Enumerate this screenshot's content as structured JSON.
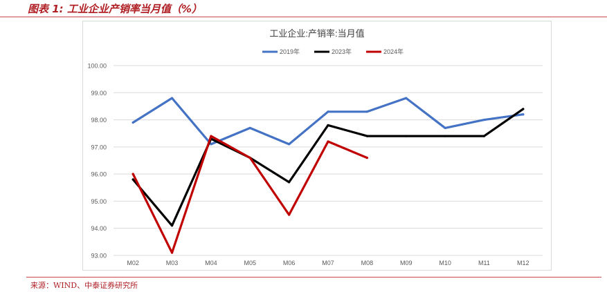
{
  "figure_caption": "图表 1:  工业企业产销率当月值（%）",
  "source_note": "来源：WIND、中泰证券研究所",
  "chart_data": {
    "type": "line",
    "title": "工业企业:产销率:当月值",
    "categories": [
      "M02",
      "M03",
      "M04",
      "M05",
      "M06",
      "M07",
      "M08",
      "M09",
      "M10",
      "M11",
      "M12"
    ],
    "ylim": [
      93.0,
      100.0
    ],
    "yticks": [
      "93.00",
      "94.00",
      "95.00",
      "96.00",
      "97.00",
      "98.00",
      "99.00",
      "100.00"
    ],
    "grid": true,
    "legend_position": "top-center",
    "series": [
      {
        "name": "2019年",
        "color": "#4472c4",
        "values": [
          97.9,
          98.8,
          97.1,
          97.7,
          97.1,
          98.3,
          98.3,
          98.8,
          97.7,
          98.0,
          98.2
        ]
      },
      {
        "name": "2023年",
        "color": "#000000",
        "values": [
          95.8,
          94.1,
          97.3,
          96.6,
          95.7,
          97.8,
          97.4,
          97.4,
          97.4,
          97.4,
          98.4
        ]
      },
      {
        "name": "2024年",
        "color": "#c00000",
        "values": [
          96.0,
          93.1,
          97.4,
          96.6,
          94.5,
          97.2,
          96.6,
          null,
          null,
          null,
          null
        ]
      }
    ]
  }
}
